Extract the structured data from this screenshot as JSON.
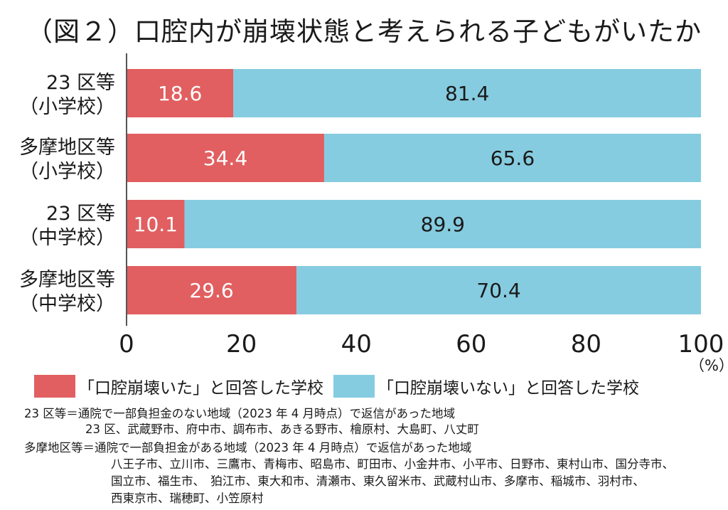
{
  "chart_data": {
    "type": "bar",
    "stacked": true,
    "orientation": "horizontal",
    "title": "（図２）口腔内が崩壊状態と考えられる子どもがいたか",
    "categories": [
      [
        "23 区等",
        "（小学校）"
      ],
      [
        "多摩地区等",
        "（小学校）"
      ],
      [
        "23 区等",
        "（中学校）"
      ],
      [
        "多摩地区等",
        "（中学校）"
      ]
    ],
    "series": [
      {
        "name": "「口腔崩壊いた」と回答した学校",
        "color": "#e15f60",
        "values": [
          18.6,
          34.4,
          10.1,
          29.6
        ]
      },
      {
        "name": "「口腔崩壊いない」と回答した学校",
        "color": "#86cce0",
        "values": [
          81.4,
          65.6,
          89.9,
          70.4
        ]
      }
    ],
    "xlim": [
      0,
      100
    ],
    "xticks": [
      "0",
      "20",
      "40",
      "60",
      "80",
      "100"
    ],
    "xunit": "（%）",
    "legend_position": "bottom",
    "grid": false
  },
  "notes": [
    "23 区等＝通院で一部負担金のない地域（2023 年 4 月時点）で返信があった地域",
    "23 区、武蔵野市、府中市、調布市、あきる野市、檜原村、大島町、八丈町",
    "多摩地区等＝通院で一部負担金がある地域（2023 年 4 月時点）で返信があった地域",
    "八王子市、立川市、三鷹市、青梅市、昭島市、町田市、小金井市、小平市、日野市、東村山市、国分寺市、",
    "国立市、福生市、　狛江市、東大和市、清瀬市、東久留米市、武蔵村山市、多摩市、稲城市、羽村市、",
    "西東京市、瑞穂町、小笠原村"
  ]
}
